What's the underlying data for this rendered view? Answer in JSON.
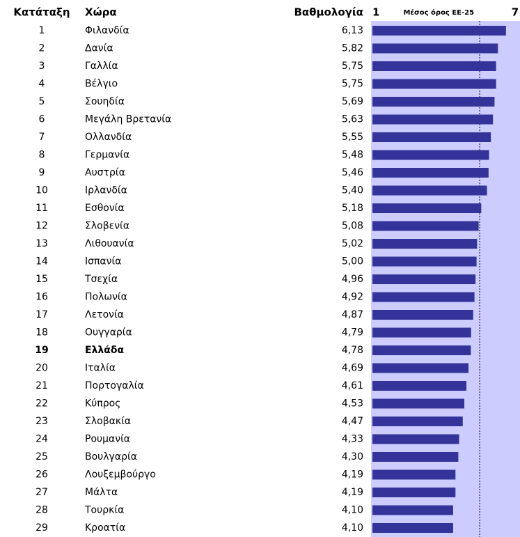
{
  "chart_data": {
    "type": "bar",
    "column_headers": [
      "Κατάταξη",
      "Χώρα",
      "Βαθμολογία"
    ],
    "ranks": [
      1,
      2,
      3,
      4,
      5,
      6,
      7,
      8,
      9,
      10,
      11,
      12,
      13,
      14,
      15,
      16,
      17,
      18,
      19,
      20,
      21,
      22,
      23,
      24,
      25,
      26,
      27,
      28,
      29
    ],
    "categories": [
      "Φιλανδία",
      "Δανία",
      "Γαλλία",
      "Βέλγιο",
      "Σουηδία",
      "Μεγάλη Βρετανία",
      "Ολλανδία",
      "Γερμανία",
      "Αυστρία",
      "Ιρλανδία",
      "Εσθονία",
      "Σλοβενία",
      "Λιθουανία",
      "Ισπανία",
      "Τσεχία",
      "Πολωνία",
      "Λετονία",
      "Ουγγαρία",
      "Ελλάδα",
      "Ιταλία",
      "Πορτογαλία",
      "Κύπρος",
      "Σλοβακία",
      "Ρουμανία",
      "Βουλγαρία",
      "Λουξεμβούργο",
      "Μάλτα",
      "Τουρκία",
      "Κροατία"
    ],
    "values": [
      6.13,
      5.82,
      5.75,
      5.75,
      5.69,
      5.63,
      5.55,
      5.48,
      5.46,
      5.4,
      5.18,
      5.08,
      5.02,
      5.0,
      4.96,
      4.92,
      4.87,
      4.79,
      4.78,
      4.69,
      4.61,
      4.53,
      4.47,
      4.33,
      4.3,
      4.19,
      4.19,
      4.1,
      4.1
    ],
    "value_labels": [
      "6,13",
      "5,82",
      "5,75",
      "5,75",
      "5,69",
      "5,63",
      "5,55",
      "5,48",
      "5,46",
      "5,40",
      "5,18",
      "5,08",
      "5,02",
      "5,00",
      "4,96",
      "4,92",
      "4,87",
      "4,79",
      "4,78",
      "4,69",
      "4,61",
      "4,53",
      "4,47",
      "4,33",
      "4,30",
      "4,19",
      "4,19",
      "4,10",
      "4,10"
    ],
    "highlight": "Ελλάδα",
    "color": "#333399",
    "background": "#ccccff",
    "xlim": [
      1,
      7
    ],
    "xticks": [
      1,
      7
    ],
    "average": {
      "label": "Μέσος όρος ΕΕ-25",
      "value": 5.12
    }
  }
}
